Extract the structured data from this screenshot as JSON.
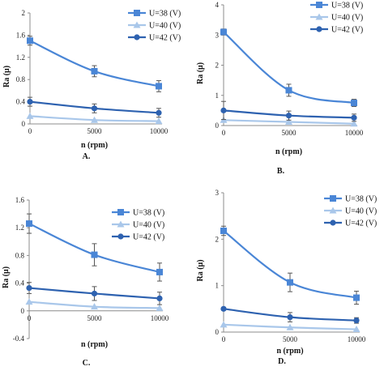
{
  "colors": {
    "U38": "#4a86d6",
    "U40": "#a9c7ea",
    "U42": "#2e62b0",
    "axis": "#8c8c8c"
  },
  "chart_data": [
    {
      "type": "line",
      "panel_label": "A.",
      "xlabel": "n (rpm)",
      "ylabel": "Ra (μ)",
      "x": [
        0,
        5000,
        10000
      ],
      "x_tick_labels": [
        "0",
        "5000",
        "10000"
      ],
      "ylim": [
        0,
        2
      ],
      "y_ticks": [
        0,
        0.4,
        0.8,
        1.2,
        1.6,
        2
      ],
      "y_tick_labels": [
        "0",
        "0.4",
        "0.8",
        "1.2",
        "1.6",
        "2"
      ],
      "legend_position": "top-right",
      "grid": false,
      "series": [
        {
          "name": "U=38 (V)",
          "marker": "square",
          "color": "#4a86d6",
          "values": [
            1.5,
            0.95,
            0.68
          ],
          "errors": [
            0.08,
            0.1,
            0.1
          ]
        },
        {
          "name": "U=40 (V)",
          "marker": "triangle",
          "color": "#a9c7ea",
          "values": [
            0.14,
            0.07,
            0.05
          ],
          "errors": [
            0,
            0,
            0
          ]
        },
        {
          "name": "U=42 (V)",
          "marker": "circle",
          "color": "#2e62b0",
          "values": [
            0.4,
            0.28,
            0.2
          ],
          "errors": [
            0.08,
            0.08,
            0.08
          ]
        }
      ]
    },
    {
      "type": "line",
      "panel_label": "B.",
      "xlabel": "n (rpm)",
      "ylabel": "Ra (μ)",
      "x": [
        0,
        5000,
        10000
      ],
      "x_tick_labels": [
        "0",
        "5000",
        "10000"
      ],
      "ylim": [
        0,
        4
      ],
      "y_ticks": [
        0,
        1,
        2,
        3,
        4
      ],
      "y_tick_labels": [
        "0",
        "1",
        "2",
        "3",
        "4"
      ],
      "legend_position": "top-right",
      "grid": false,
      "series": [
        {
          "name": "U=38 (V)",
          "marker": "square",
          "color": "#4a86d6",
          "values": [
            3.1,
            1.17,
            0.75
          ],
          "errors": [
            0.1,
            0.2,
            0.12
          ]
        },
        {
          "name": "U=40 (V)",
          "marker": "triangle",
          "color": "#a9c7ea",
          "values": [
            0.18,
            0.12,
            0.06
          ],
          "errors": [
            0,
            0,
            0
          ]
        },
        {
          "name": "U=42 (V)",
          "marker": "circle",
          "color": "#2e62b0",
          "values": [
            0.5,
            0.33,
            0.26
          ],
          "errors": [
            0.3,
            0.15,
            0.12
          ]
        }
      ]
    },
    {
      "type": "line",
      "panel_label": "C.",
      "xlabel": "n (rpm)",
      "ylabel": "Ra (μ)",
      "x": [
        0,
        5000,
        10000
      ],
      "x_tick_labels": [
        "0",
        "5000",
        "10000"
      ],
      "ylim": [
        -0.4,
        1.6
      ],
      "y_ticks": [
        -0.4,
        0,
        0.4,
        0.8,
        1.2,
        1.6
      ],
      "y_tick_labels": [
        "-0.4",
        "0",
        "0.4",
        "0.8",
        "1.2",
        "1.6"
      ],
      "legend_position": "top-right",
      "grid": false,
      "series": [
        {
          "name": "U=38 (V)",
          "marker": "square",
          "color": "#4a86d6",
          "values": [
            1.26,
            0.81,
            0.56
          ],
          "errors": [
            0.14,
            0.16,
            0.13
          ]
        },
        {
          "name": "U=40 (V)",
          "marker": "triangle",
          "color": "#a9c7ea",
          "values": [
            0.13,
            0.06,
            0.04
          ],
          "errors": [
            0,
            0,
            0
          ]
        },
        {
          "name": "U=42 (V)",
          "marker": "circle",
          "color": "#2e62b0",
          "values": [
            0.33,
            0.25,
            0.18
          ],
          "errors": [
            0.08,
            0.1,
            0.09
          ]
        }
      ]
    },
    {
      "type": "line",
      "panel_label": "D.",
      "xlabel": "n (rpm)",
      "ylabel": "Ra (μ)",
      "x": [
        0,
        5000,
        10000
      ],
      "x_tick_labels": [
        "0",
        "5000",
        "10000"
      ],
      "ylim": [
        0,
        3
      ],
      "y_ticks": [
        0,
        1,
        2,
        3
      ],
      "y_tick_labels": [
        "0",
        "1",
        "2",
        "3"
      ],
      "legend_position": "top-right",
      "grid": false,
      "series": [
        {
          "name": "U=38 (V)",
          "marker": "square",
          "color": "#4a86d6",
          "values": [
            2.18,
            1.07,
            0.74
          ],
          "errors": [
            0.1,
            0.2,
            0.14
          ]
        },
        {
          "name": "U=40 (V)",
          "marker": "triangle",
          "color": "#a9c7ea",
          "values": [
            0.16,
            0.1,
            0.06
          ],
          "errors": [
            0,
            0,
            0
          ]
        },
        {
          "name": "U=42 (V)",
          "marker": "circle",
          "color": "#2e62b0",
          "values": [
            0.5,
            0.32,
            0.25
          ],
          "errors": [
            0.03,
            0.1,
            0.06
          ]
        }
      ]
    }
  ]
}
